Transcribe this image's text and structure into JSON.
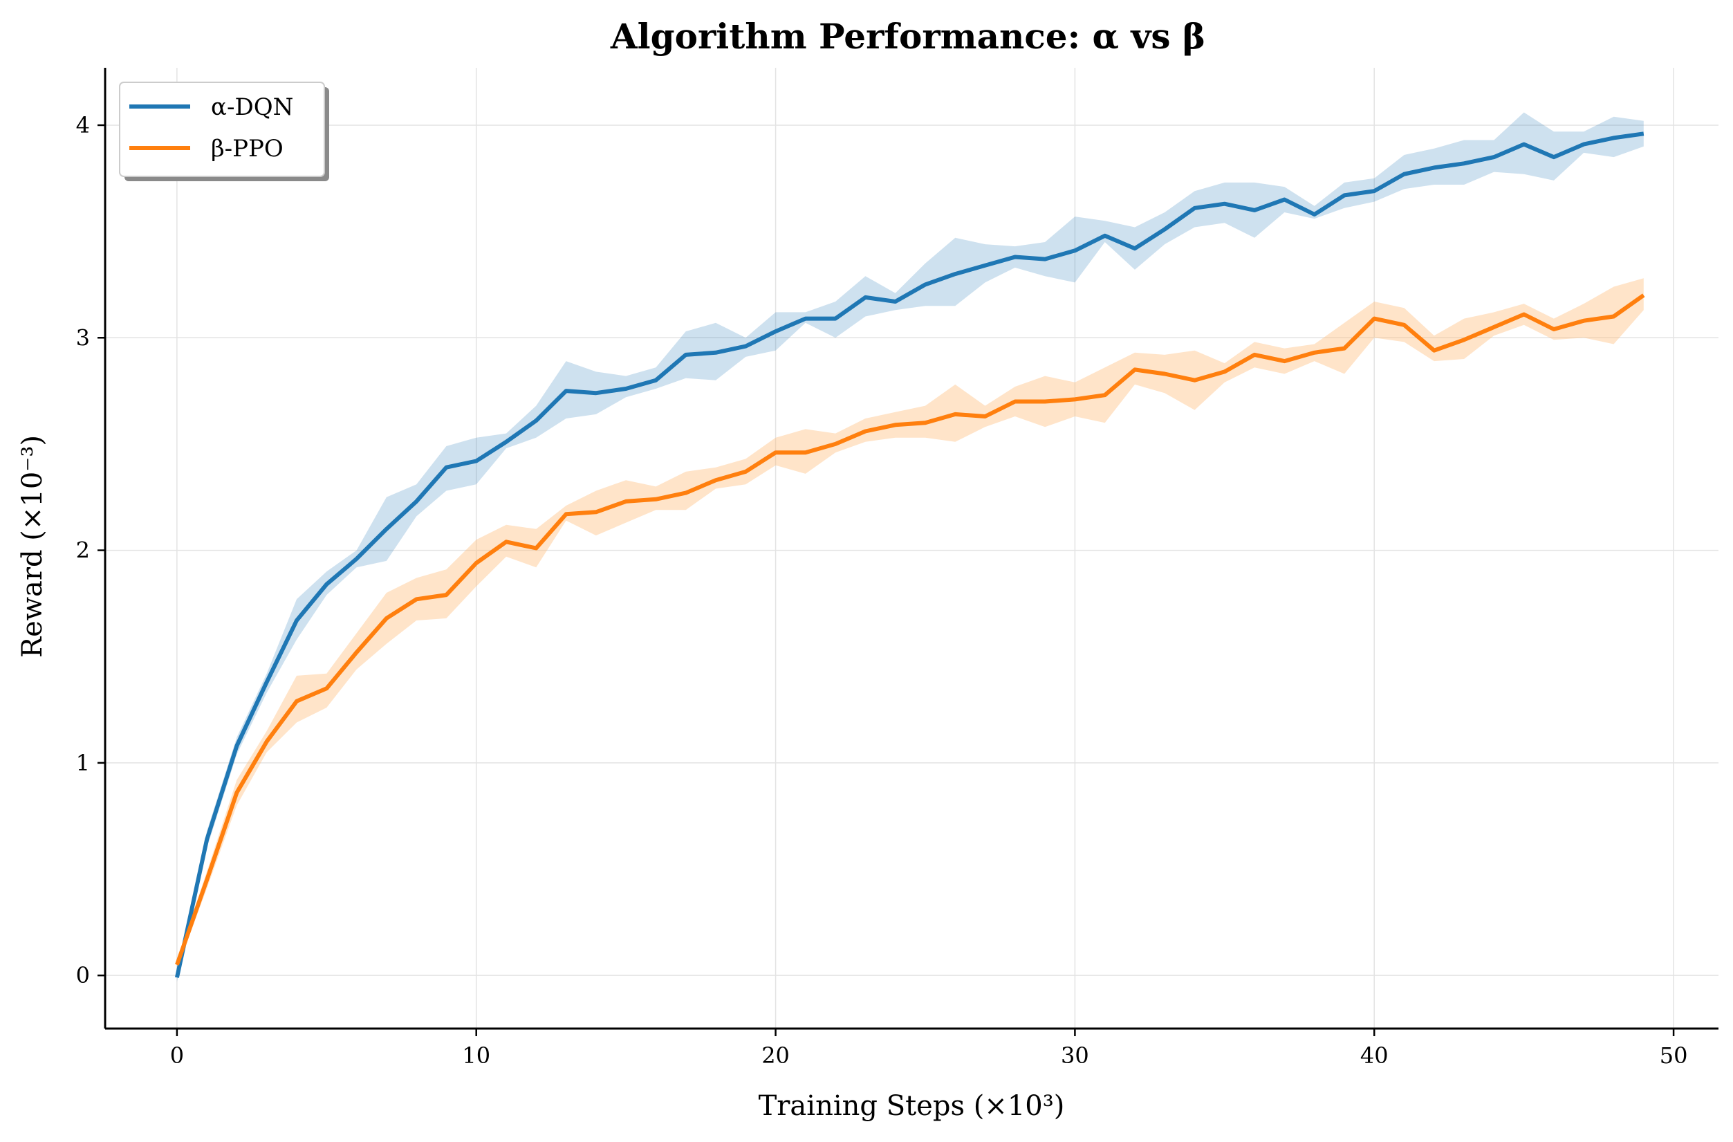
{
  "chart_data": {
    "type": "line",
    "title": "Algorithm Performance: α vs β",
    "xlabel": "Training Steps (×10³)",
    "ylabel": "Reward (×10⁻³)",
    "xlim": [
      -2.4,
      51.5
    ],
    "ylim": [
      -0.25,
      4.27
    ],
    "xticks": [
      0,
      10,
      20,
      30,
      40,
      50
    ],
    "yticks": [
      0,
      1,
      2,
      3,
      4
    ],
    "grid": true,
    "legend_position": "top-left",
    "x": [
      0,
      1,
      2,
      3,
      4,
      5,
      6,
      7,
      8,
      9,
      10,
      11,
      12,
      13,
      14,
      15,
      16,
      17,
      18,
      19,
      20,
      21,
      22,
      23,
      24,
      25,
      26,
      27,
      28,
      29,
      30,
      31,
      32,
      33,
      34,
      35,
      36,
      37,
      38,
      39,
      40,
      41,
      42,
      43,
      44,
      45,
      46,
      47,
      48,
      49
    ],
    "series": [
      {
        "name": "α-DQN",
        "color": "#1f77b4",
        "band_color": "#1f77b4",
        "values": [
          -0.01,
          0.64,
          1.08,
          1.38,
          1.67,
          1.84,
          1.96,
          2.1,
          2.23,
          2.39,
          2.42,
          2.51,
          2.61,
          2.75,
          2.74,
          2.76,
          2.8,
          2.92,
          2.93,
          2.96,
          3.03,
          3.09,
          3.09,
          3.19,
          3.17,
          3.25,
          3.3,
          3.34,
          3.38,
          3.37,
          3.41,
          3.48,
          3.42,
          3.51,
          3.61,
          3.63,
          3.6,
          3.65,
          3.58,
          3.67,
          3.69,
          3.77,
          3.8,
          3.82,
          3.85,
          3.91,
          3.85,
          3.91,
          3.94,
          3.96
        ],
        "lower": [
          -0.03,
          0.6,
          1.04,
          1.33,
          1.58,
          1.79,
          1.92,
          1.95,
          2.16,
          2.28,
          2.31,
          2.48,
          2.53,
          2.62,
          2.64,
          2.72,
          2.76,
          2.81,
          2.8,
          2.91,
          2.94,
          3.07,
          3.0,
          3.1,
          3.13,
          3.15,
          3.15,
          3.26,
          3.33,
          3.29,
          3.26,
          3.45,
          3.32,
          3.44,
          3.52,
          3.54,
          3.47,
          3.59,
          3.56,
          3.61,
          3.64,
          3.7,
          3.72,
          3.72,
          3.78,
          3.77,
          3.74,
          3.87,
          3.85,
          3.9
        ],
        "upper": [
          0.01,
          0.68,
          1.12,
          1.42,
          1.77,
          1.9,
          2.0,
          2.25,
          2.31,
          2.49,
          2.53,
          2.55,
          2.68,
          2.89,
          2.84,
          2.82,
          2.86,
          3.03,
          3.07,
          3.0,
          3.12,
          3.12,
          3.17,
          3.29,
          3.21,
          3.35,
          3.47,
          3.44,
          3.43,
          3.45,
          3.57,
          3.55,
          3.52,
          3.59,
          3.69,
          3.73,
          3.73,
          3.71,
          3.62,
          3.73,
          3.75,
          3.86,
          3.89,
          3.93,
          3.93,
          4.06,
          3.97,
          3.97,
          4.04,
          4.02
        ]
      },
      {
        "name": "β-PPO",
        "color": "#ff7f0e",
        "band_color": "#ffbb78",
        "values": [
          0.05,
          0.45,
          0.86,
          1.1,
          1.29,
          1.35,
          1.52,
          1.68,
          1.77,
          1.79,
          1.94,
          2.04,
          2.01,
          2.17,
          2.18,
          2.23,
          2.24,
          2.27,
          2.33,
          2.37,
          2.46,
          2.46,
          2.5,
          2.56,
          2.59,
          2.6,
          2.64,
          2.63,
          2.7,
          2.7,
          2.71,
          2.73,
          2.85,
          2.83,
          2.8,
          2.84,
          2.92,
          2.89,
          2.93,
          2.95,
          3.09,
          3.06,
          2.94,
          2.99,
          3.05,
          3.11,
          3.04,
          3.08,
          3.1,
          3.2
        ],
        "lower": [
          0.03,
          0.41,
          0.8,
          1.05,
          1.19,
          1.26,
          1.44,
          1.56,
          1.67,
          1.68,
          1.83,
          1.97,
          1.92,
          2.14,
          2.07,
          2.13,
          2.19,
          2.19,
          2.29,
          2.31,
          2.4,
          2.36,
          2.46,
          2.51,
          2.53,
          2.53,
          2.51,
          2.58,
          2.63,
          2.58,
          2.63,
          2.6,
          2.78,
          2.74,
          2.66,
          2.79,
          2.86,
          2.83,
          2.89,
          2.83,
          3.0,
          2.98,
          2.89,
          2.9,
          3.01,
          3.06,
          2.99,
          3.0,
          2.97,
          3.13
        ],
        "upper": [
          0.07,
          0.49,
          0.92,
          1.15,
          1.41,
          1.42,
          1.61,
          1.8,
          1.87,
          1.91,
          2.05,
          2.12,
          2.1,
          2.21,
          2.28,
          2.33,
          2.3,
          2.37,
          2.39,
          2.43,
          2.53,
          2.57,
          2.55,
          2.62,
          2.65,
          2.68,
          2.78,
          2.68,
          2.77,
          2.82,
          2.79,
          2.86,
          2.93,
          2.92,
          2.94,
          2.88,
          2.98,
          2.95,
          2.97,
          3.07,
          3.17,
          3.14,
          3.01,
          3.09,
          3.12,
          3.16,
          3.09,
          3.16,
          3.24,
          3.28
        ]
      }
    ]
  }
}
